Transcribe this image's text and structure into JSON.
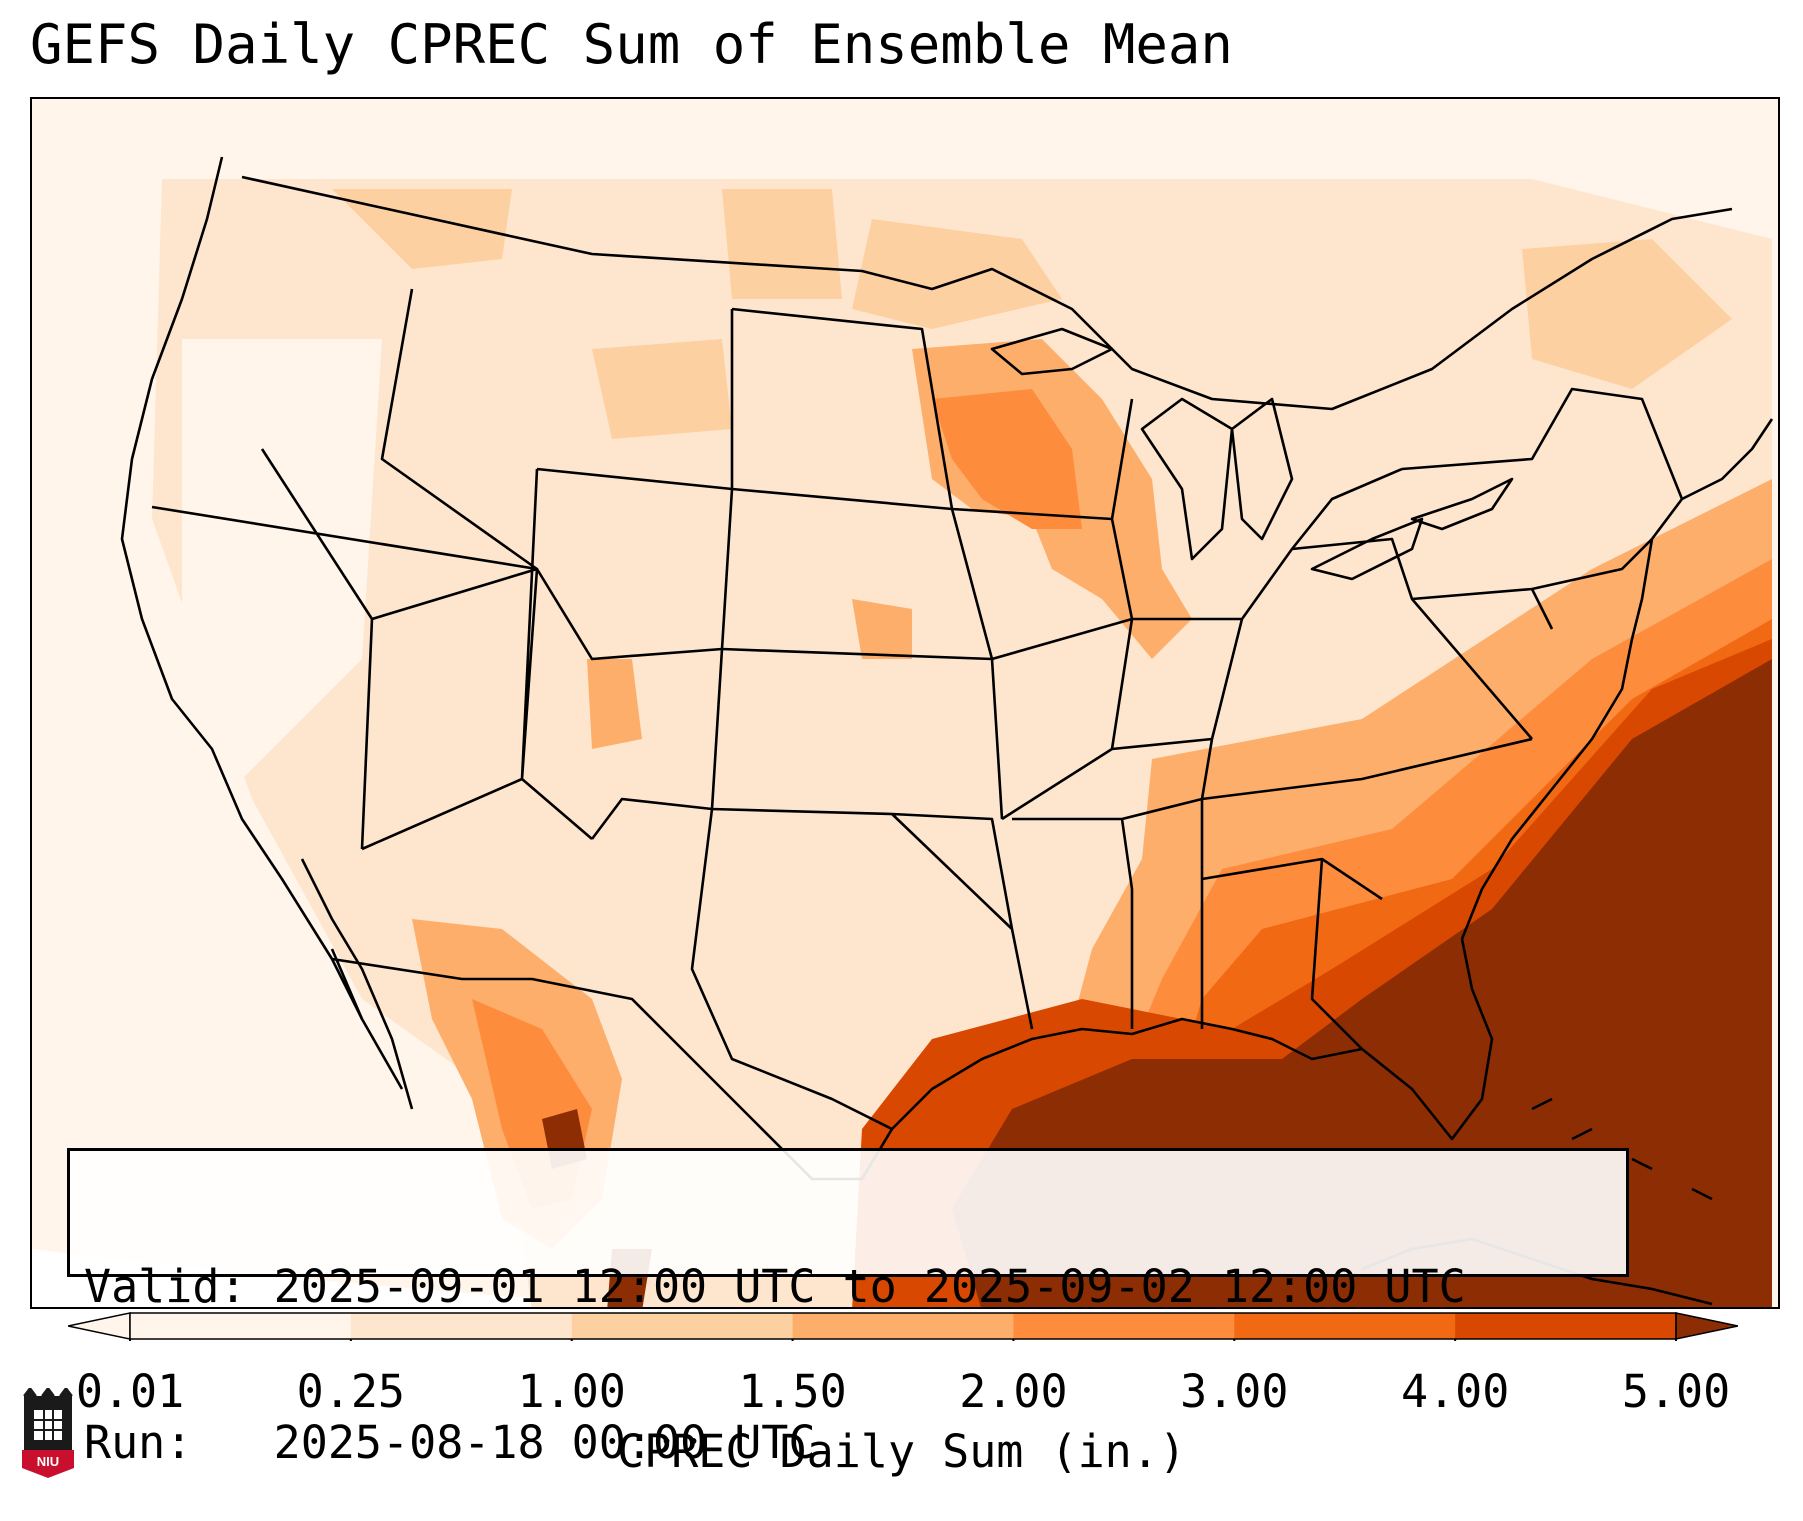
{
  "title": "GEFS Daily CPREC Sum of Ensemble Mean",
  "info": {
    "valid_line": "Valid: 2025-09-01 12:00 UTC to 2025-09-02 12:00 UTC",
    "run_line": "Run:   2025-08-18 00:00 UTC"
  },
  "colorbar": {
    "label": "CPREC Daily Sum (in.)",
    "ticks": [
      "0.01",
      "0.25",
      "1.00",
      "1.50",
      "2.00",
      "3.00",
      "4.00",
      "5.00"
    ],
    "colors": [
      "#fff5eb",
      "#fee6ce",
      "#fdd0a2",
      "#fdae6b",
      "#fd8d3c",
      "#f16913",
      "#d94801",
      "#8c2d04"
    ],
    "extend": "both"
  },
  "logo": {
    "text": "NIU",
    "colors": [
      "#c8102e",
      "#000000"
    ]
  },
  "map": {
    "projection": "CONUS Lambert conformal",
    "borders": [
      "states",
      "countries",
      "coastlines",
      "lakes"
    ],
    "field": "CPREC daily sum, ensemble mean"
  }
}
